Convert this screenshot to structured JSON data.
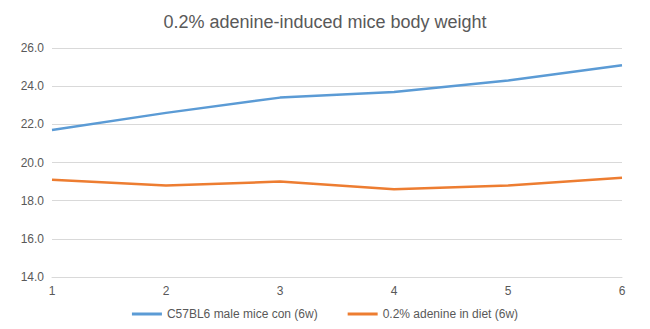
{
  "chart_data": {
    "type": "line",
    "title": "0.2% adenine-induced mice body weight",
    "categories": [
      "1",
      "2",
      "3",
      "4",
      "5",
      "6"
    ],
    "series": [
      {
        "name": "C57BL6 male mice con (6w)",
        "color": "#5b9bd5",
        "values": [
          21.7,
          22.6,
          23.4,
          23.7,
          24.3,
          25.1
        ]
      },
      {
        "name": "0.2% adenine in diet (6w)",
        "color": "#ed7d31",
        "values": [
          19.1,
          18.8,
          19.0,
          18.6,
          18.8,
          19.2
        ]
      }
    ],
    "ylim": [
      14,
      26
    ],
    "yticks": [
      {
        "value": 14,
        "label": "14.0"
      },
      {
        "value": 16,
        "label": "16.0"
      },
      {
        "value": 18,
        "label": "18.0"
      },
      {
        "value": 20,
        "label": "20.0"
      },
      {
        "value": 22,
        "label": "22.0"
      },
      {
        "value": 24,
        "label": "24.0"
      },
      {
        "value": 26,
        "label": "26.0"
      }
    ],
    "grid": true,
    "legend": "bottom"
  }
}
